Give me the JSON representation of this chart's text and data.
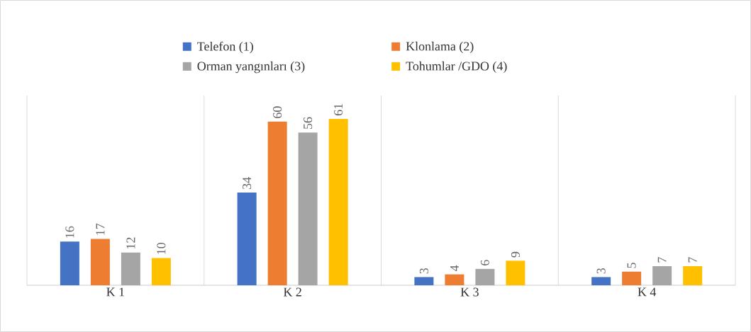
{
  "chart_data": {
    "type": "bar",
    "categories": [
      "K 1",
      "K 2",
      "K 3",
      "K 4"
    ],
    "series": [
      {
        "name": "Telefon (1)",
        "color": "#4472c4",
        "values": [
          16,
          34,
          3,
          3
        ]
      },
      {
        "name": "Klonlama (2)",
        "color": "#ed7d31",
        "values": [
          17,
          60,
          4,
          5
        ]
      },
      {
        "name": "Orman yangınları (3)",
        "color": "#a5a5a5",
        "values": [
          12,
          56,
          6,
          7
        ]
      },
      {
        "name": "Tohumlar /GDO (4)",
        "color": "#ffc000",
        "values": [
          10,
          61,
          9,
          7
        ]
      }
    ],
    "data_labels": true,
    "grid": "x",
    "legend": "top"
  }
}
